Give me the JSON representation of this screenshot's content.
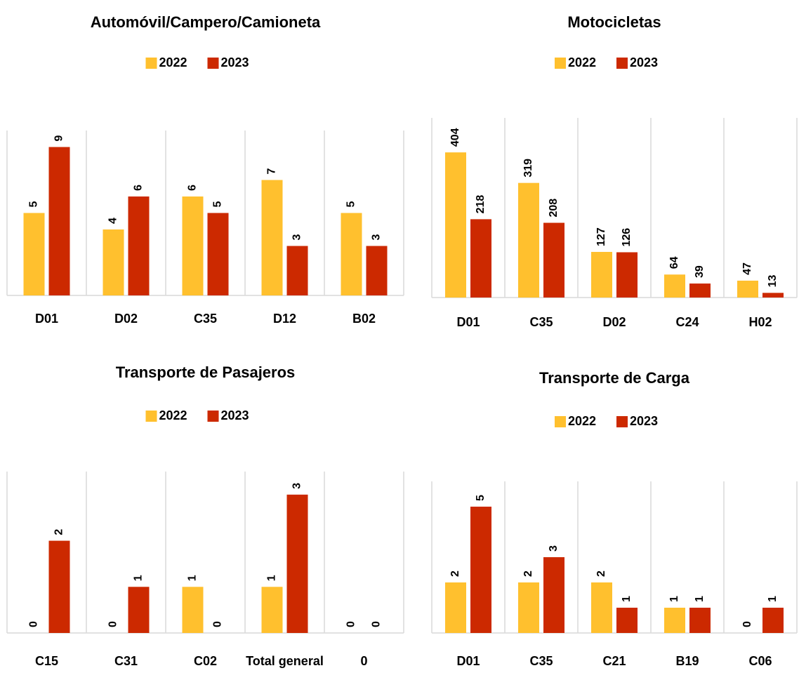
{
  "chart_data": [
    {
      "type": "bar",
      "title": "Automóvil/Campero/Camioneta",
      "categories": [
        "D01",
        "D02",
        "C35",
        "D12",
        "B02"
      ],
      "series": [
        {
          "name": "2022",
          "color": "#FFC02E",
          "values": [
            5,
            4,
            6,
            7,
            5
          ]
        },
        {
          "name": "2023",
          "color": "#CC2900",
          "values": [
            9,
            6,
            5,
            3,
            3
          ]
        }
      ],
      "ylim": [
        0,
        10
      ]
    },
    {
      "type": "bar",
      "title": "Motocicletas",
      "categories": [
        "D01",
        "C35",
        "D02",
        "C24",
        "H02"
      ],
      "series": [
        {
          "name": "2022",
          "color": "#FFC02E",
          "values": [
            404,
            319,
            127,
            64,
            47
          ]
        },
        {
          "name": "2023",
          "color": "#CC2900",
          "values": [
            218,
            208,
            126,
            39,
            13
          ]
        }
      ],
      "ylim": [
        0,
        500
      ]
    },
    {
      "type": "bar",
      "title": "Transporte de Pasajeros",
      "categories": [
        "C15",
        "C31",
        "C02",
        "Total general",
        "0"
      ],
      "series": [
        {
          "name": "2022",
          "color": "#FFC02E",
          "values": [
            0,
            0,
            1,
            1,
            0
          ]
        },
        {
          "name": "2023",
          "color": "#CC2900",
          "values": [
            2,
            1,
            0,
            3,
            0
          ]
        }
      ],
      "ylim": [
        0,
        3.5
      ]
    },
    {
      "type": "bar",
      "title": "Transporte de Carga",
      "categories": [
        "D01",
        "C35",
        "C21",
        "B19",
        "C06"
      ],
      "series": [
        {
          "name": "2022",
          "color": "#FFC02E",
          "values": [
            2,
            2,
            2,
            1,
            0
          ]
        },
        {
          "name": "2023",
          "color": "#CC2900",
          "values": [
            5,
            3,
            1,
            1,
            1
          ]
        }
      ],
      "ylim": [
        0,
        6
      ]
    }
  ]
}
